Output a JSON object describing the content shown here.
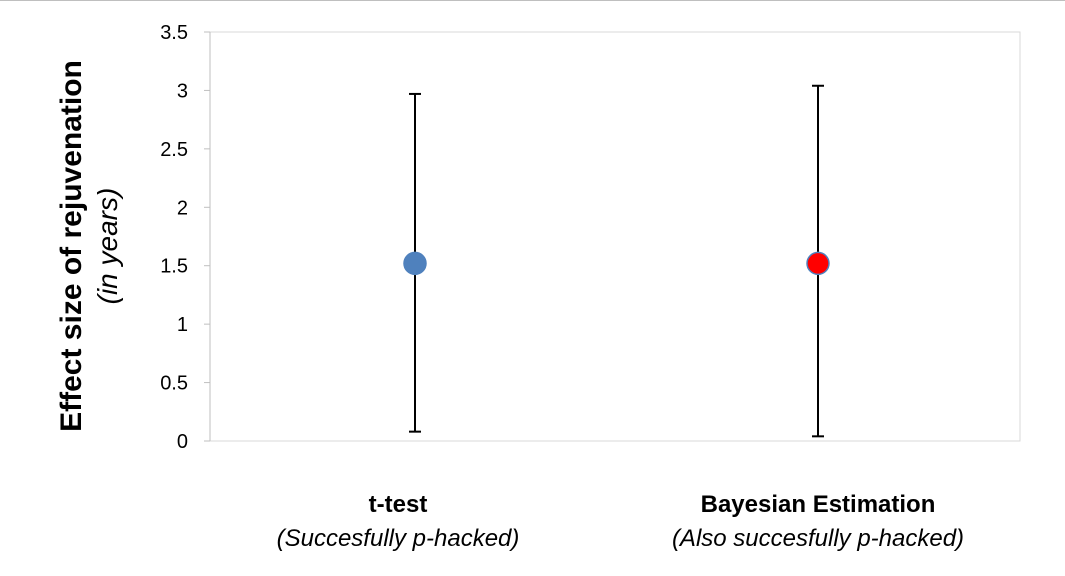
{
  "chart_data": {
    "type": "scatter",
    "ylabel": "Effect size of rejuvenation",
    "ylabel_sub": "(in years)",
    "ylim": [
      0,
      3.5
    ],
    "yticks": [
      "0",
      "0.5",
      "1",
      "1.5",
      "2",
      "2.5",
      "3",
      "3.5"
    ],
    "grid": false,
    "categories": [
      {
        "label": "t-test",
        "sublabel": "(Succesfully  p-hacked)"
      },
      {
        "label": "Bayesian Estimation",
        "sublabel": "(Also succesfully  p-hacked)"
      }
    ],
    "points": [
      {
        "value": 1.52,
        "lower": 0.08,
        "upper": 2.97,
        "color": "#4f81bd"
      },
      {
        "value": 1.52,
        "lower": 0.04,
        "upper": 3.04,
        "color": "#ff0000"
      }
    ]
  }
}
